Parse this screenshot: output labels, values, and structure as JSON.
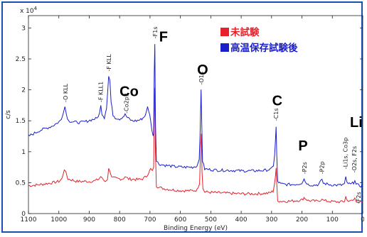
{
  "chart_data": {
    "type": "line",
    "title": "",
    "xlabel": "Binding Energy (eV)",
    "ylabel": "c/s",
    "y_multiplier": "x 10",
    "y_multiplier_exp": "4",
    "xlim": [
      1100,
      0
    ],
    "ylim": [
      0,
      3.2
    ],
    "x_ticks": [
      1100,
      1000,
      900,
      800,
      700,
      600,
      500,
      400,
      300,
      200,
      100,
      0
    ],
    "y_ticks": [
      0,
      0.5,
      1,
      1.5,
      2,
      2.5,
      3
    ],
    "y_tick_labels": [
      "0",
      "0.5",
      "1",
      "1.5",
      "2",
      "2.5",
      "3"
    ],
    "grid": false,
    "legend_position": "top-right",
    "series": [
      {
        "name": "未試験",
        "color": "#e8202a",
        "points": [
          [
            1100,
            0.45
          ],
          [
            1060,
            0.47
          ],
          [
            1020,
            0.5
          ],
          [
            1000,
            0.52
          ],
          [
            990,
            0.56
          ],
          [
            982,
            0.72
          ],
          [
            977,
            0.66
          ],
          [
            970,
            0.56
          ],
          [
            940,
            0.52
          ],
          [
            900,
            0.52
          ],
          [
            880,
            0.53
          ],
          [
            868,
            0.56
          ],
          [
            862,
            0.6
          ],
          [
            857,
            0.56
          ],
          [
            848,
            0.52
          ],
          [
            840,
            0.56
          ],
          [
            836,
            0.72
          ],
          [
            832,
            0.7
          ],
          [
            826,
            0.58
          ],
          [
            800,
            0.56
          ],
          [
            790,
            0.56
          ],
          [
            782,
            0.6
          ],
          [
            778,
            0.58
          ],
          [
            770,
            0.56
          ],
          [
            740,
            0.55
          ],
          [
            725,
            0.56
          ],
          [
            712,
            0.6
          ],
          [
            704,
            0.67
          ],
          [
            698,
            0.72
          ],
          [
            692,
            0.68
          ],
          [
            688,
            0.76
          ],
          [
            686,
            1.6
          ],
          [
            684,
            2.05
          ],
          [
            682,
            1.0
          ],
          [
            679,
            0.45
          ],
          [
            670,
            0.42
          ],
          [
            650,
            0.4
          ],
          [
            620,
            0.38
          ],
          [
            590,
            0.37
          ],
          [
            560,
            0.37
          ],
          [
            545,
            0.38
          ],
          [
            537,
            0.5
          ],
          [
            533,
            1.15
          ],
          [
            531,
            1.3
          ],
          [
            529,
            0.7
          ],
          [
            526,
            0.4
          ],
          [
            520,
            0.35
          ],
          [
            490,
            0.34
          ],
          [
            450,
            0.33
          ],
          [
            400,
            0.32
          ],
          [
            350,
            0.32
          ],
          [
            310,
            0.33
          ],
          [
            295,
            0.36
          ],
          [
            290,
            0.5
          ],
          [
            287,
            0.62
          ],
          [
            285,
            0.72
          ],
          [
            283,
            0.5
          ],
          [
            280,
            0.22
          ],
          [
            275,
            0.2
          ],
          [
            260,
            0.2
          ],
          [
            240,
            0.2
          ],
          [
            220,
            0.21
          ],
          [
            200,
            0.22
          ],
          [
            193,
            0.26
          ],
          [
            190,
            0.25
          ],
          [
            180,
            0.21
          ],
          [
            150,
            0.2
          ],
          [
            138,
            0.22
          ],
          [
            134,
            0.25
          ],
          [
            130,
            0.21
          ],
          [
            110,
            0.2
          ],
          [
            90,
            0.19
          ],
          [
            70,
            0.19
          ],
          [
            60,
            0.2
          ],
          [
            56,
            0.27
          ],
          [
            52,
            0.22
          ],
          [
            40,
            0.2
          ],
          [
            30,
            0.22
          ],
          [
            26,
            0.25
          ],
          [
            22,
            0.2
          ],
          [
            10,
            0.19
          ],
          [
            0,
            0.18
          ]
        ]
      },
      {
        "name": "高温保存試験後",
        "color": "#1a1fcc",
        "points": [
          [
            1100,
            1.25
          ],
          [
            1080,
            1.3
          ],
          [
            1060,
            1.35
          ],
          [
            1040,
            1.38
          ],
          [
            1020,
            1.42
          ],
          [
            1000,
            1.48
          ],
          [
            992,
            1.52
          ],
          [
            985,
            1.65
          ],
          [
            980,
            1.73
          ],
          [
            975,
            1.6
          ],
          [
            968,
            1.5
          ],
          [
            950,
            1.48
          ],
          [
            930,
            1.47
          ],
          [
            910,
            1.49
          ],
          [
            890,
            1.52
          ],
          [
            875,
            1.54
          ],
          [
            866,
            1.62
          ],
          [
            862,
            1.74
          ],
          [
            858,
            1.62
          ],
          [
            850,
            1.55
          ],
          [
            843,
            1.72
          ],
          [
            839,
            2.0
          ],
          [
            836,
            2.22
          ],
          [
            832,
            2.15
          ],
          [
            828,
            1.8
          ],
          [
            822,
            1.6
          ],
          [
            814,
            1.55
          ],
          [
            800,
            1.53
          ],
          [
            790,
            1.56
          ],
          [
            782,
            1.6
          ],
          [
            774,
            1.55
          ],
          [
            760,
            1.5
          ],
          [
            745,
            1.5
          ],
          [
            730,
            1.52
          ],
          [
            720,
            1.56
          ],
          [
            713,
            1.62
          ],
          [
            708,
            1.72
          ],
          [
            704,
            1.66
          ],
          [
            698,
            1.52
          ],
          [
            694,
            1.35
          ],
          [
            690,
            1.25
          ],
          [
            688,
            1.3
          ],
          [
            686,
            2.3
          ],
          [
            684,
            2.75
          ],
          [
            682,
            1.5
          ],
          [
            679,
            0.85
          ],
          [
            670,
            0.8
          ],
          [
            650,
            0.78
          ],
          [
            620,
            0.76
          ],
          [
            590,
            0.75
          ],
          [
            560,
            0.75
          ],
          [
            545,
            0.77
          ],
          [
            538,
            0.9
          ],
          [
            535,
            1.3
          ],
          [
            532,
            2.0
          ],
          [
            530,
            1.55
          ],
          [
            527,
            0.85
          ],
          [
            520,
            0.72
          ],
          [
            500,
            0.71
          ],
          [
            470,
            0.7
          ],
          [
            440,
            0.7
          ],
          [
            400,
            0.69
          ],
          [
            360,
            0.69
          ],
          [
            320,
            0.7
          ],
          [
            300,
            0.72
          ],
          [
            294,
            0.78
          ],
          [
            290,
            0.95
          ],
          [
            287,
            1.2
          ],
          [
            285,
            1.4
          ],
          [
            283,
            0.95
          ],
          [
            280,
            0.52
          ],
          [
            270,
            0.48
          ],
          [
            250,
            0.47
          ],
          [
            230,
            0.47
          ],
          [
            210,
            0.48
          ],
          [
            200,
            0.5
          ],
          [
            193,
            0.56
          ],
          [
            189,
            0.52
          ],
          [
            180,
            0.47
          ],
          [
            160,
            0.46
          ],
          [
            145,
            0.47
          ],
          [
            138,
            0.52
          ],
          [
            134,
            0.56
          ],
          [
            130,
            0.49
          ],
          [
            110,
            0.47
          ],
          [
            90,
            0.46
          ],
          [
            70,
            0.46
          ],
          [
            60,
            0.48
          ],
          [
            56,
            0.58
          ],
          [
            52,
            0.5
          ],
          [
            40,
            0.47
          ],
          [
            30,
            0.5
          ],
          [
            26,
            0.55
          ],
          [
            22,
            0.47
          ],
          [
            10,
            0.45
          ],
          [
            0,
            0.44
          ]
        ]
      }
    ],
    "peak_labels": [
      {
        "text": "-O KLL",
        "x": 978,
        "y": 1.8
      },
      {
        "text": "-F KLL1",
        "x": 862,
        "y": 1.8
      },
      {
        "text": "-F KLL",
        "x": 836,
        "y": 2.3
      },
      {
        "text": "-Co2p3",
        "x": 778,
        "y": 1.62
      },
      {
        "text": "-F1s",
        "x": 683,
        "y": 2.83
      },
      {
        "text": "-O1s",
        "x": 531,
        "y": 2.08
      },
      {
        "text": "-C1s",
        "x": 285,
        "y": 1.5
      },
      {
        "text": "-P2s",
        "x": 192,
        "y": 0.64
      },
      {
        "text": "-P2p",
        "x": 134,
        "y": 0.64
      },
      {
        "text": "-Li1s, Co3p",
        "x": 57,
        "y": 0.72
      },
      {
        "text": "-O2s, F2s",
        "x": 28,
        "y": 0.66
      },
      {
        "text": "-F2s",
        "x": 14,
        "y": 0.16
      }
    ],
    "element_labels": [
      {
        "text": "F",
        "x": 670,
        "y": 2.78
      },
      {
        "text": "Co",
        "x": 800,
        "y": 1.9
      },
      {
        "text": "O",
        "x": 545,
        "y": 2.25
      },
      {
        "text": "C",
        "x": 298,
        "y": 1.75
      },
      {
        "text": "P",
        "x": 212,
        "y": 1.02
      },
      {
        "text": "Li",
        "x": 42,
        "y": 1.4
      }
    ],
    "legend": [
      {
        "label": "未試験",
        "color": "#e8202a"
      },
      {
        "label": "高温保存試験後",
        "color": "#1a1fcc"
      }
    ]
  }
}
